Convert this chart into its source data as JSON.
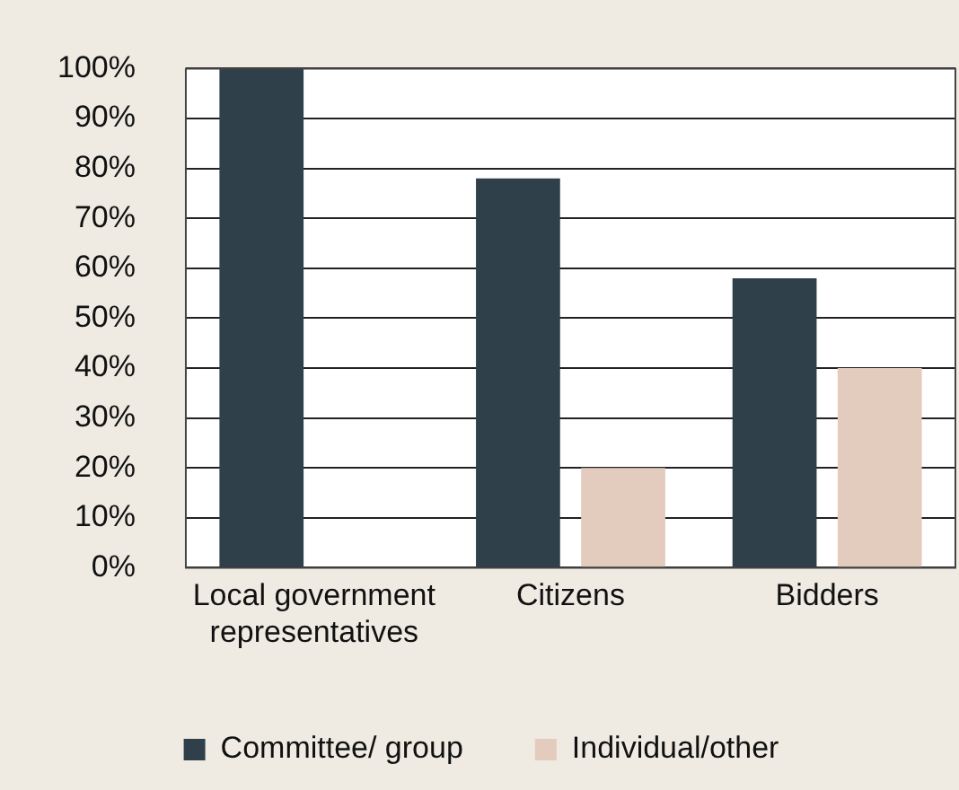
{
  "chart_data": {
    "type": "bar",
    "categories": [
      "Local government representatives",
      "Citizens",
      "Bidders"
    ],
    "series": [
      {
        "name": "Committee/ group",
        "color": "#2f404b",
        "values": [
          100,
          78,
          58
        ]
      },
      {
        "name": "Individual/other",
        "color": "#e3cbbd",
        "values": [
          0,
          20,
          40
        ]
      }
    ],
    "ylim": [
      0,
      100
    ],
    "yticks": [
      {
        "value": 0,
        "label": "0%"
      },
      {
        "value": 10,
        "label": "10%"
      },
      {
        "value": 20,
        "label": "20%"
      },
      {
        "value": 30,
        "label": "30%"
      },
      {
        "value": 40,
        "label": "40%"
      },
      {
        "value": 50,
        "label": "50%"
      },
      {
        "value": 60,
        "label": "60%"
      },
      {
        "value": 70,
        "label": "70%"
      },
      {
        "value": 80,
        "label": "80%"
      },
      {
        "value": 90,
        "label": "90%"
      },
      {
        "value": 100,
        "label": "100%"
      }
    ],
    "grid": "y",
    "legend": "bottom"
  }
}
